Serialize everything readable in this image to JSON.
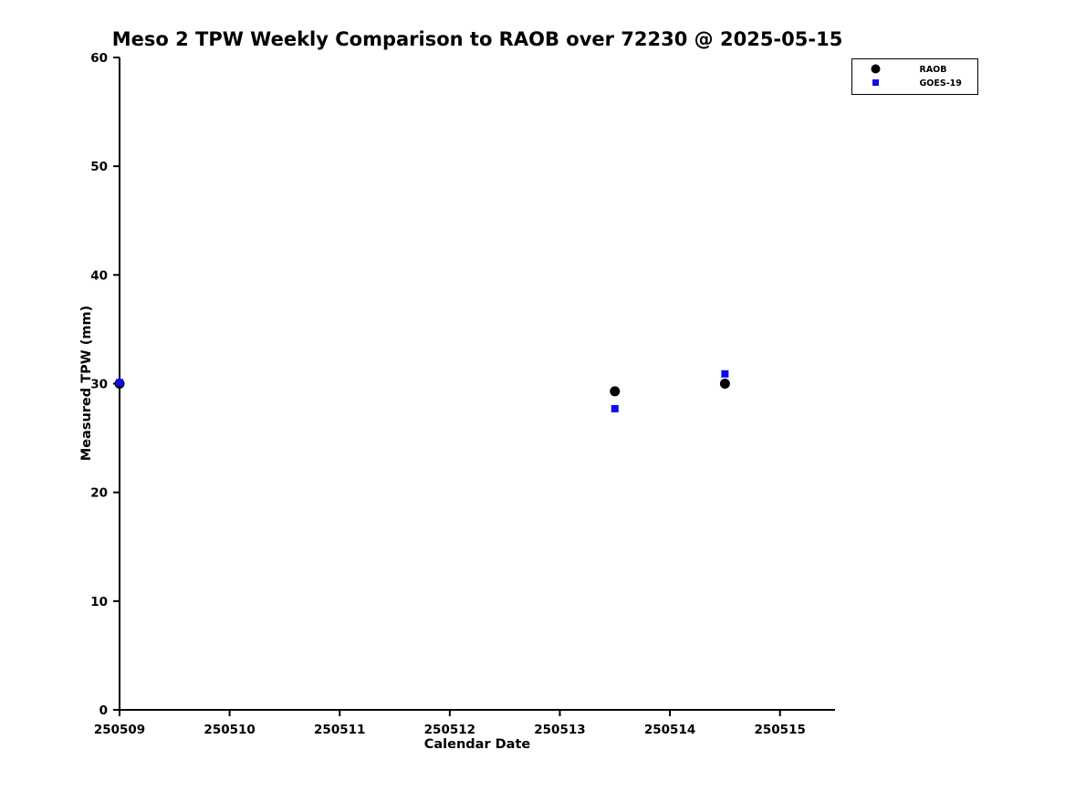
{
  "chart_data": {
    "type": "scatter",
    "title": "Meso 2 TPW Weekly Comparison to RAOB over 72230 @ 2025-05-15",
    "xlabel": "Calendar Date",
    "ylabel": "Measured TPW (mm)",
    "xlim": [
      250509,
      250515.5
    ],
    "ylim": [
      0,
      60
    ],
    "xticks": [
      "250509",
      "250510",
      "250511",
      "250512",
      "250513",
      "250514",
      "250515"
    ],
    "xtick_values": [
      250509,
      250510,
      250511,
      250512,
      250513,
      250514,
      250515
    ],
    "yticks": [
      "0",
      "10",
      "20",
      "30",
      "40",
      "50",
      "60"
    ],
    "ytick_values": [
      0,
      10,
      20,
      30,
      40,
      50,
      60
    ],
    "grid": false,
    "legend_position": "top-right-outside",
    "axis_color": "#000000",
    "background_color": "#ffffff",
    "series": [
      {
        "name": "RAOB",
        "marker": "circle",
        "color": "#000000",
        "points": [
          [
            250509.0,
            30.0
          ],
          [
            250513.5,
            29.3
          ],
          [
            250514.5,
            30.0
          ]
        ]
      },
      {
        "name": "GOES-19",
        "marker": "square",
        "color": "#0b0bee",
        "points": [
          [
            250509.0,
            30.1
          ],
          [
            250513.5,
            27.7
          ],
          [
            250514.5,
            30.9
          ]
        ]
      }
    ]
  }
}
